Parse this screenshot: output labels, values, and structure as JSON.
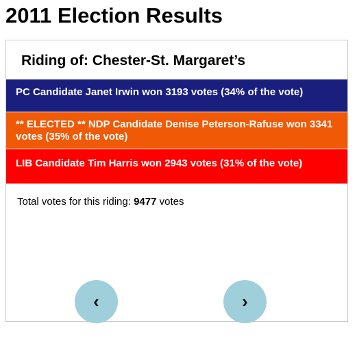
{
  "page": {
    "title": "2011 Election Results"
  },
  "riding": {
    "title": "Riding of: Chester-St. Margaret’s",
    "candidates": [
      {
        "party": "PC",
        "text": "PC Candidate Janet Irwin won 3193 votes (34% of the vote)",
        "votes": 3193,
        "percent": 34,
        "elected": false,
        "color": "#1a1f7e"
      },
      {
        "party": "NDP",
        "text": "** ELECTED ** NDP Candidate Denise Peterson-Rafuse won 3341 votes (35% of the vote)",
        "votes": 3341,
        "percent": 35,
        "elected": true,
        "color": "#f05a06"
      },
      {
        "party": "LIB",
        "text": "LIB Candidate Tim Harris won 2943 votes (31% of the vote)",
        "votes": 2943,
        "percent": 31,
        "elected": false,
        "color": "#ff0000"
      }
    ],
    "total": {
      "label": "Total votes for this riding:",
      "value": "9477",
      "unit": "votes"
    }
  },
  "nav": {
    "prev_label": "‹",
    "next_label": "›",
    "button_color": "#9fcfdb"
  }
}
